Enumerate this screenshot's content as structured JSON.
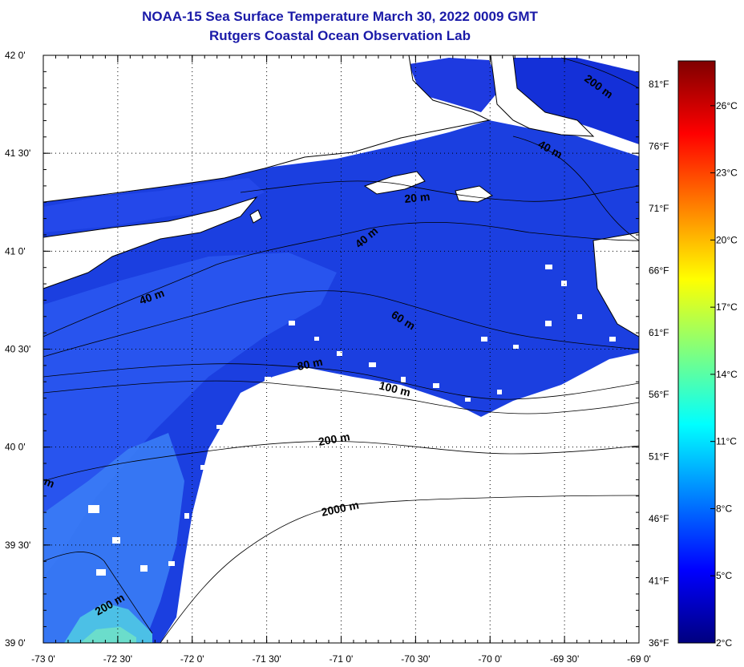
{
  "title": {
    "line1": "NOAA-15 Sea Surface Temperature March 30, 2022 0009 GMT",
    "line2": "Rutgers Coastal Ocean Observation Lab"
  },
  "map": {
    "lon_range": [
      -73.0,
      -69.0
    ],
    "lat_range": [
      39.0,
      42.0
    ],
    "lon_ticks": [
      {
        "value": -73.0,
        "label": "-73 0'"
      },
      {
        "value": -72.5,
        "label": "-72 30'"
      },
      {
        "value": -72.0,
        "label": "-72 0'"
      },
      {
        "value": -71.5,
        "label": "-71 30'"
      },
      {
        "value": -71.0,
        "label": "-71 0'"
      },
      {
        "value": -70.5,
        "label": "-70 30'"
      },
      {
        "value": -70.0,
        "label": "-70 0'"
      },
      {
        "value": -69.5,
        "label": "-69 30'"
      },
      {
        "value": -69.0,
        "label": "-69 0'"
      }
    ],
    "lat_ticks": [
      {
        "value": 42.0,
        "label": "42 0'"
      },
      {
        "value": 41.5,
        "label": "41 30'"
      },
      {
        "value": 41.0,
        "label": "41 0'"
      },
      {
        "value": 40.5,
        "label": "40 30'"
      },
      {
        "value": 40.0,
        "label": "40 0'"
      },
      {
        "value": 39.5,
        "label": "39 30'"
      },
      {
        "value": 39.0,
        "label": "39 0'"
      }
    ],
    "fahrenheit_ticks": [
      {
        "value": 81,
        "label": "81°F"
      },
      {
        "value": 76,
        "label": "76°F"
      },
      {
        "value": 71,
        "label": "71°F"
      },
      {
        "value": 66,
        "label": "66°F"
      },
      {
        "value": 61,
        "label": "61°F"
      },
      {
        "value": 56,
        "label": "56°F"
      },
      {
        "value": 51,
        "label": "51°F"
      },
      {
        "value": 46,
        "label": "46°F"
      },
      {
        "value": 41,
        "label": "41°F"
      },
      {
        "value": 36,
        "label": "36°F"
      }
    ],
    "contour_labels": [
      "200 m",
      "40 m",
      "20 m",
      "40 m",
      "40 m",
      "60 m",
      "80 m",
      "100 m",
      "200 m",
      "m",
      "2000 m",
      "200 m"
    ]
  },
  "colorbar": {
    "temp_range_c": [
      2,
      28
    ],
    "ticks": [
      {
        "value": 2,
        "label": "2°C"
      },
      {
        "value": 5,
        "label": "5°C"
      },
      {
        "value": 8,
        "label": "8°C"
      },
      {
        "value": 11,
        "label": "11°C"
      },
      {
        "value": 14,
        "label": "14°C"
      },
      {
        "value": 17,
        "label": "17°C"
      },
      {
        "value": 20,
        "label": "20°C"
      },
      {
        "value": 23,
        "label": "23°C"
      },
      {
        "value": 26,
        "label": "26°C"
      }
    ],
    "colors": [
      "#00007f",
      "#0000ff",
      "#007fff",
      "#00ffff",
      "#7fff7f",
      "#ffff00",
      "#ff7f00",
      "#ff0000",
      "#7f0000"
    ]
  }
}
